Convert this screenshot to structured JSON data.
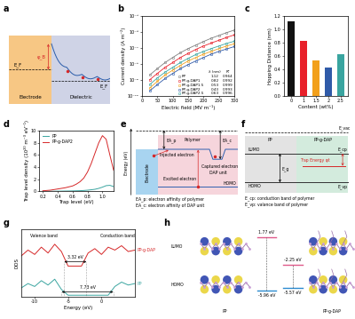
{
  "chart_data": [
    {
      "panel": "b",
      "type": "line",
      "x_label": "Electric field (MV m⁻¹)",
      "y_label": "Current density (A m⁻²)",
      "log": "y",
      "xlim": [
        0,
        300
      ],
      "xticks": [
        0,
        50,
        100,
        150,
        200,
        250,
        300
      ],
      "ylim": [
        1e-10,
        1e-05
      ],
      "yticks": [
        {
          "value": 1e-10,
          "label": "10⁻¹⁰"
        },
        {
          "value": 1e-09,
          "label": "10⁻⁹"
        },
        {
          "value": 1e-08,
          "label": "10⁻⁸"
        },
        {
          "value": 1e-07,
          "label": "10⁻⁷"
        },
        {
          "value": 1e-06,
          "label": "10⁻⁶"
        },
        {
          "value": 1e-05,
          "label": "10⁻⁵"
        }
      ],
      "marker": "o",
      "line_style": "solid",
      "legend": "lower right",
      "legend_header": [
        "λ (nm)",
        "R²"
      ],
      "x": [
        25,
        50,
        75,
        100,
        125,
        150,
        175,
        200,
        225,
        250,
        275,
        300
      ],
      "series": [
        {
          "name": "PP",
          "color": "#7f7f7f",
          "lambda": 1.12,
          "r2": 0.964,
          "values": [
            2e-09,
            5e-09,
            1.2e-08,
            2.5e-08,
            5e-08,
            9e-08,
            1.5e-07,
            2.5e-07,
            4e-07,
            6e-07,
            9e-07,
            1.3e-06
          ]
        },
        {
          "name": "PP-g-DAP1",
          "color": "#e8202a",
          "lambda": 0.82,
          "r2": 0.992,
          "values": [
            1e-09,
            2.5e-09,
            6e-09,
            1.2e-08,
            2.5e-08,
            4.5e-08,
            8e-08,
            1.3e-07,
            2e-07,
            3e-07,
            4.5e-07,
            6.5e-07
          ]
        },
        {
          "name": "PP-g-DAP1.5",
          "color": "#f2a01c",
          "lambda": 0.53,
          "r2": 0.999,
          "values": [
            3e-10,
            8e-10,
            2e-09,
            4e-09,
            8e-09,
            1.5e-08,
            2.5e-08,
            4e-08,
            6e-08,
            9e-08,
            1.3e-07,
            1.8e-07
          ]
        },
        {
          "name": "PP-g-DAP2",
          "color": "#2f5aa8",
          "lambda": 0.43,
          "r2": 0.993,
          "values": [
            2e-10,
            5e-10,
            1.2e-09,
            2.5e-09,
            5e-09,
            9e-09,
            1.5e-08,
            2.5e-08,
            4e-08,
            6e-08,
            8.5e-08,
            1.2e-07
          ]
        },
        {
          "name": "PP-g-DAP2.5",
          "color": "#3aa5a0",
          "lambda": 0.63,
          "r2": 0.996,
          "values": [
            5e-10,
            1.3e-09,
            3e-09,
            6e-09,
            1.2e-08,
            2.2e-08,
            3.8e-08,
            6e-08,
            9e-08,
            1.3e-07,
            1.9e-07,
            2.6e-07
          ]
        }
      ]
    },
    {
      "panel": "c",
      "type": "bar",
      "x_label": "Content (wt%)",
      "y_label": "Hopping Distance (nm)",
      "categories": [
        "0",
        "1",
        "1.5",
        "2",
        "2.5"
      ],
      "values": [
        1.12,
        0.82,
        0.53,
        0.43,
        0.63
      ],
      "colors": [
        "#111111",
        "#e8202a",
        "#f2a01c",
        "#2f5aa8",
        "#3aa5a0"
      ],
      "ylim": [
        0,
        1.2
      ],
      "yticks": [
        {
          "value": 0,
          "label": "0.0"
        },
        0.2,
        0.4,
        0.6,
        0.8,
        {
          "value": 1,
          "label": "1.0"
        },
        1.2
      ]
    },
    {
      "panel": "d",
      "type": "line",
      "x_label": "Trap level (eV)",
      "y_label": "Trap level density (10²⁰ m⁻³ eV⁻¹)",
      "xlim": [
        0.15,
        1.15
      ],
      "xticks": [
        0.2,
        0.4,
        0.6,
        0.8,
        {
          "value": 1,
          "label": "1.0"
        }
      ],
      "ylim": [
        0,
        10
      ],
      "yticks": [
        0,
        2,
        4,
        6,
        8,
        10
      ],
      "legend": "upper left",
      "x": [
        0.2,
        0.25,
        0.3,
        0.35,
        0.4,
        0.45,
        0.5,
        0.55,
        0.6,
        0.65,
        0.7,
        0.75,
        0.8,
        0.85,
        0.9,
        0.95,
        1.0,
        1.05,
        1.1,
        1.15
      ],
      "series": [
        {
          "name": "PP",
          "color": "#3aa5a0",
          "values": [
            0.02,
            0.02,
            0.03,
            0.03,
            0.04,
            0.05,
            0.06,
            0.07,
            0.08,
            0.1,
            0.12,
            0.15,
            0.2,
            0.27,
            0.35,
            0.5,
            0.7,
            0.95,
            1.0,
            0.8
          ]
        },
        {
          "name": "PP-g-DAP2",
          "color": "#d62728",
          "values": [
            0.1,
            0.15,
            0.2,
            0.3,
            0.4,
            0.5,
            0.6,
            0.75,
            0.9,
            1.2,
            1.6,
            2.2,
            3.2,
            4.6,
            6.3,
            8.0,
            9.2,
            8.6,
            6.0,
            3.5
          ]
        }
      ]
    },
    {
      "panel": "g",
      "type": "line",
      "x_label": "Energy (eV)",
      "y_label": "DOS",
      "tick_labels": "x",
      "xlim": [
        -12,
        5
      ],
      "xticks": [
        -10,
        -5,
        0
      ],
      "ylim": [
        0,
        2.3
      ],
      "x": [
        -12,
        -11,
        -10,
        -9,
        -8,
        -7,
        -6,
        -5,
        -4,
        -3,
        -2,
        -1,
        0,
        1,
        2,
        3,
        4,
        5
      ],
      "series": [
        {
          "name": "PP-g-DAP",
          "color": "#d62728",
          "values": [
            1.4,
            1.6,
            1.45,
            1.7,
            1.5,
            1.8,
            1.55,
            1.05,
            1.05,
            1.05,
            1.5,
            1.65,
            1.45,
            1.7,
            1.6,
            1.75,
            1.55,
            1.6
          ]
        },
        {
          "name": "PP",
          "color": "#3aa5a0",
          "values": [
            0.3,
            0.45,
            0.35,
            0.55,
            0.4,
            0.6,
            0.25,
            0.05,
            0.05,
            0.05,
            0.05,
            0.05,
            0.05,
            0.05,
            0.35,
            0.5,
            0.4,
            0.45
          ]
        }
      ],
      "band_labels": [
        "Valence band",
        "Conduction band"
      ],
      "gaps": [
        {
          "label": "3.32 eV",
          "from": -5.57,
          "to": -2.25
        },
        {
          "label": "7.73 eV",
          "from": -5.96,
          "to": 1.77
        }
      ]
    }
  ],
  "diagrams": {
    "a": {
      "label": "a",
      "electrode": "Electrode",
      "dielectric": "Dielectric",
      "barrier": "φ_B",
      "fermi": [
        "E_F",
        "E_F"
      ]
    },
    "e": {
      "label": "e",
      "axis_label": "Energy (eV)",
      "electrode": "Electrode",
      "polymer": "Polymer",
      "ea_p": "EA_p",
      "ea_c": "EA_c",
      "injected": "Injected electron",
      "excited": "Excited electron",
      "captured": "Captured electron",
      "dap": "DAP unit",
      "homo": "HOMO",
      "definitions": [
        "EA_p: electron affinity of polymer",
        "EA_c: electron affinity of DAP unit"
      ]
    },
    "f": {
      "label": "f",
      "e_vac": "E_vac",
      "regions": [
        "PP",
        "PP-g-DAP"
      ],
      "lumo": "LUMO",
      "homo": "HOMO",
      "e_g": "E_g",
      "e_cp": "E_cp",
      "e_vp": "E_vp",
      "trap": "Trap Energy φt",
      "definitions": [
        "E_cp: conduction band of polymer",
        "E_vp: valance band of polymer"
      ]
    },
    "h": {
      "label": "h",
      "row_labels": [
        "LUMO",
        "HOMO"
      ],
      "molecules": [
        {
          "name": "PP",
          "LUMO": {
            "value": 1.77,
            "label": "1.77 eV"
          },
          "HOMO": {
            "value": -5.96,
            "label": "-5.96 eV"
          }
        },
        {
          "name": "PP-g-DAP",
          "LUMO": {
            "value": -2.25,
            "label": "-2.25 eV"
          },
          "HOMO": {
            "value": -5.57,
            "label": "-5.57 eV"
          }
        }
      ]
    }
  }
}
